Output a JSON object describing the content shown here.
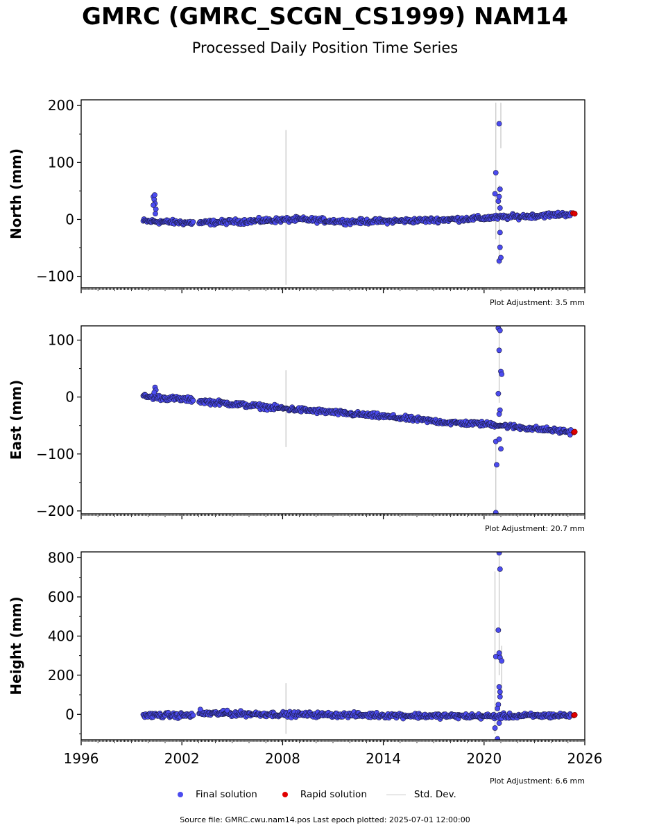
{
  "header": {
    "title": "GMRC (GMRC_SCGN_CS1999) NAM14",
    "subtitle": "Processed Daily Position Time Series"
  },
  "legend": {
    "final": "Final solution",
    "rapid": "Rapid solution",
    "std": "Std. Dev."
  },
  "colors": {
    "final": "#4b4bef",
    "rapid": "#e00000",
    "std": "#c8c8c8",
    "edge": "#1a1a40"
  },
  "footer": {
    "source": "Source file: GMRC.cwu.nam14.pos  Last epoch plotted: 2025-07-01 12:00:00"
  },
  "chart_data": [
    {
      "type": "scatter",
      "ylabel": "North (mm)",
      "ylim": [
        -120,
        210
      ],
      "yticks": [
        -100,
        0,
        100,
        200
      ],
      "xlim": [
        1996,
        2026
      ],
      "adjustment": "Plot Adjustment: 3.5 mm",
      "trend": [
        [
          1999.7,
          -3
        ],
        [
          2002.6,
          -6
        ],
        [
          2003.1,
          -6
        ],
        [
          2009,
          0
        ],
        [
          2012,
          -4
        ],
        [
          2016,
          -2
        ],
        [
          2019,
          1
        ],
        [
          2022,
          5
        ],
        [
          2025.5,
          10
        ]
      ],
      "noise": 3,
      "gaps": [
        [
          2002.7,
          2003.0
        ]
      ],
      "final_points": [
        {
          "x": 2000.3,
          "y": 40
        },
        {
          "x": 2000.35,
          "y": 35
        },
        {
          "x": 2000.4,
          "y": 28
        },
        {
          "x": 2000.45,
          "y": 18
        },
        {
          "x": 2000.3,
          "y": 25
        },
        {
          "x": 2000.38,
          "y": 43
        },
        {
          "x": 2000.42,
          "y": 10
        },
        {
          "x": 2020.7,
          "y": 82
        },
        {
          "x": 2020.65,
          "y": 45
        },
        {
          "x": 2020.9,
          "y": 168
        },
        {
          "x": 2020.95,
          "y": 53
        },
        {
          "x": 2020.85,
          "y": 32
        },
        {
          "x": 2020.9,
          "y": 40
        },
        {
          "x": 2020.95,
          "y": 20
        },
        {
          "x": 2020.9,
          "y": -73
        },
        {
          "x": 2021.0,
          "y": -67
        },
        {
          "x": 2020.95,
          "y": -49
        },
        {
          "x": 2020.95,
          "y": -23
        }
      ],
      "rapid_points": [
        {
          "x": 2025.3,
          "y": 11
        },
        {
          "x": 2025.4,
          "y": 10
        }
      ],
      "std_bars": [
        {
          "x": 2008.2,
          "low": -115,
          "high": 157
        },
        {
          "x": 2020.7,
          "low": -35,
          "high": 205
        },
        {
          "x": 2021.0,
          "low": 125,
          "high": 205
        },
        {
          "x": 2020.9,
          "low": -80,
          "high": 60
        }
      ]
    },
    {
      "type": "scatter",
      "ylabel": "East (mm)",
      "ylim": [
        -205,
        125
      ],
      "yticks": [
        -200,
        -100,
        0,
        100
      ],
      "xlim": [
        1996,
        2026
      ],
      "adjustment": "Plot Adjustment: 20.7 mm",
      "trend": [
        [
          1999.7,
          1
        ],
        [
          2002.6,
          -5
        ],
        [
          2003.1,
          -7
        ],
        [
          2008,
          -20
        ],
        [
          2014,
          -34
        ],
        [
          2018,
          -45
        ],
        [
          2020.5,
          -48
        ],
        [
          2022,
          -53
        ],
        [
          2025.5,
          -62
        ]
      ],
      "noise": 3,
      "gaps": [
        [
          2002.7,
          2003.0
        ]
      ],
      "final_points": [
        {
          "x": 2000.4,
          "y": 17
        },
        {
          "x": 2000.45,
          "y": 12
        },
        {
          "x": 2000.35,
          "y": 8
        },
        {
          "x": 2020.85,
          "y": 121
        },
        {
          "x": 2020.95,
          "y": 117
        },
        {
          "x": 2020.9,
          "y": 82
        },
        {
          "x": 2021.0,
          "y": 45
        },
        {
          "x": 2021.05,
          "y": 40
        },
        {
          "x": 2020.85,
          "y": 6
        },
        {
          "x": 2020.95,
          "y": -23
        },
        {
          "x": 2020.9,
          "y": -30
        },
        {
          "x": 2020.7,
          "y": -78
        },
        {
          "x": 2020.9,
          "y": -74
        },
        {
          "x": 2021.0,
          "y": -91
        },
        {
          "x": 2020.75,
          "y": -119
        },
        {
          "x": 2020.7,
          "y": -203
        }
      ],
      "rapid_points": [
        {
          "x": 2025.35,
          "y": -62
        },
        {
          "x": 2025.4,
          "y": -61
        }
      ],
      "std_bars": [
        {
          "x": 2008.2,
          "low": -88,
          "high": 47
        },
        {
          "x": 2020.7,
          "low": -205,
          "high": -80
        },
        {
          "x": 2020.9,
          "low": -10,
          "high": 125
        }
      ]
    },
    {
      "type": "scatter",
      "ylabel": "Height (mm)",
      "ylim": [
        -130,
        830
      ],
      "yticks": [
        0,
        200,
        400,
        600,
        800
      ],
      "xlim": [
        1996,
        2026
      ],
      "xticks": [
        1996,
        2002,
        2008,
        2014,
        2020,
        2026
      ],
      "adjustment": "Plot Adjustment: 6.6 mm",
      "trend": [
        [
          1999.7,
          -5
        ],
        [
          2002.6,
          -5
        ],
        [
          2003.1,
          5
        ],
        [
          2008,
          0
        ],
        [
          2014,
          -5
        ],
        [
          2020,
          -10
        ],
        [
          2025.5,
          -5
        ]
      ],
      "noise": 9,
      "gaps": [
        [
          2002.7,
          2003.0
        ]
      ],
      "final_points": [
        {
          "x": 2003.1,
          "y": 25
        },
        {
          "x": 2004.7,
          "y": 20
        },
        {
          "x": 2020.9,
          "y": 825
        },
        {
          "x": 2020.95,
          "y": 742
        },
        {
          "x": 2020.85,
          "y": 430
        },
        {
          "x": 2020.7,
          "y": 295
        },
        {
          "x": 2020.9,
          "y": 313
        },
        {
          "x": 2020.95,
          "y": 290
        },
        {
          "x": 2021.05,
          "y": 273
        },
        {
          "x": 2020.9,
          "y": 140
        },
        {
          "x": 2020.95,
          "y": 115
        },
        {
          "x": 2020.95,
          "y": 90
        },
        {
          "x": 2020.85,
          "y": 50
        },
        {
          "x": 2020.8,
          "y": 30
        },
        {
          "x": 2020.65,
          "y": -70
        },
        {
          "x": 2020.9,
          "y": -45
        },
        {
          "x": 2020.8,
          "y": -125
        }
      ],
      "rapid_points": [
        {
          "x": 2025.35,
          "y": -5
        },
        {
          "x": 2025.4,
          "y": -3
        }
      ],
      "std_bars": [
        {
          "x": 2008.2,
          "low": -100,
          "high": 160
        },
        {
          "x": 2020.65,
          "low": -100,
          "high": 730
        },
        {
          "x": 2020.9,
          "low": 200,
          "high": 830
        },
        {
          "x": 2021.05,
          "low": 100,
          "high": 350
        }
      ]
    }
  ]
}
